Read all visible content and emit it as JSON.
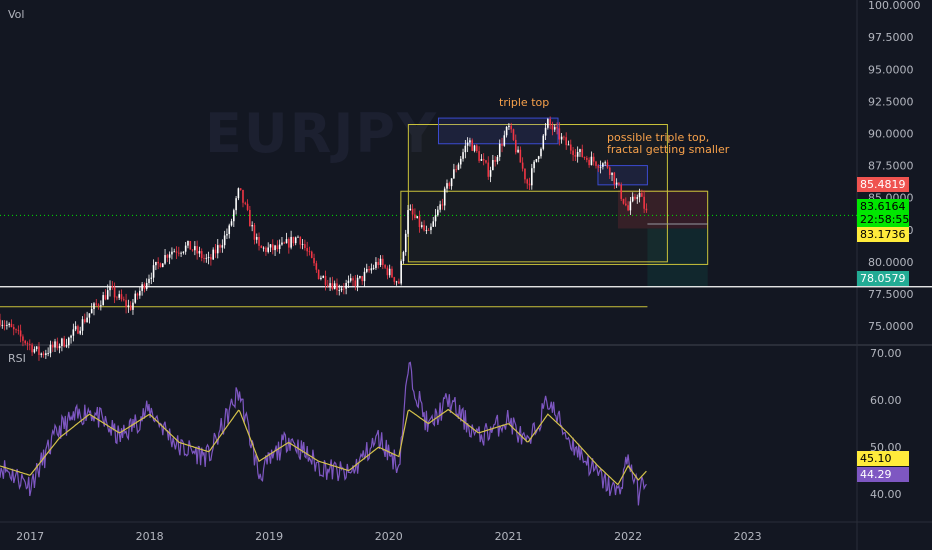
{
  "watermark": "EURJPY",
  "price_pane": {
    "label": "Vol",
    "y_ticks": [
      "100.0000",
      "97.5000",
      "95.0000",
      "92.5000",
      "90.0000",
      "87.5000",
      "85.0000",
      "82.5000",
      "80.0000",
      "77.5000",
      "75.0000"
    ],
    "badges": {
      "high_level": {
        "text": "85.4819",
        "bg": "#ef5350",
        "fg": "#ffffff"
      },
      "last_price": {
        "text": "83.6164",
        "bg": "#00e600",
        "fg": "#000000"
      },
      "countdown": {
        "text": "22:58:55",
        "bg": "#00e600",
        "fg": "#000000"
      },
      "low_level": {
        "text": "83.1736",
        "bg": "#ffeb3b",
        "fg": "#000000"
      },
      "support": {
        "text": "78.0579",
        "bg": "#22ab94",
        "fg": "#ffffff"
      }
    },
    "annotations": {
      "triple_top": "triple top",
      "fractal_note": "possible triple top,\nfractal getting smaller"
    }
  },
  "rsi_pane": {
    "label": "RSI",
    "y_ticks": [
      "70.00",
      "60.00",
      "50.00",
      "40.00"
    ],
    "badges": {
      "rsi_ma": {
        "text": "45.10",
        "bg": "#ffeb3b",
        "fg": "#000000"
      },
      "rsi": {
        "text": "44.29",
        "bg": "#7e57c2",
        "fg": "#ffffff"
      }
    }
  },
  "x_ticks": [
    "2017",
    "2018",
    "2019",
    "2020",
    "2021",
    "2022",
    "2023"
  ],
  "colors": {
    "background": "#131722",
    "candle_up": "#ffffff",
    "candle_down": "#f23645",
    "rsi_line": "#7e57c2",
    "rsi_ma": "#d4c24a",
    "box": "#c9c23a",
    "blue_box": "#3b4bd1",
    "annotation": "#f7a14b"
  },
  "chart_data": [
    {
      "type": "candlestick",
      "title": "",
      "ylim": [
        73.6,
        100.4
      ],
      "x_range": [
        "2016-10",
        "2023-12"
      ],
      "levels": {
        "support_white": 78.0579,
        "support_yellow": 76.5
      },
      "series": [
        {
          "name": "",
          "points": [
            [
              "2016-10",
              75.5
            ],
            [
              "2017-02",
              72.8
            ],
            [
              "2017-05",
              74.0
            ],
            [
              "2017-07",
              76.0
            ],
            [
              "2017-09",
              77.8
            ],
            [
              "2017-11",
              76.4
            ],
            [
              "2018-01",
              79.0
            ],
            [
              "2018-03",
              80.8
            ],
            [
              "2018-05",
              81.2
            ],
            [
              "2018-07",
              80.0
            ],
            [
              "2018-09",
              82.5
            ],
            [
              "2018-10",
              85.6
            ],
            [
              "2018-12",
              81.0
            ],
            [
              "2019-02",
              81.0
            ],
            [
              "2019-04",
              82.0
            ],
            [
              "2019-06",
              79.0
            ],
            [
              "2019-08",
              78.0
            ],
            [
              "2019-10",
              78.5
            ],
            [
              "2019-12",
              80.0
            ],
            [
              "2020-02",
              78.4
            ],
            [
              "2020-03",
              84.0
            ],
            [
              "2020-05",
              82.0
            ],
            [
              "2020-07",
              86.0
            ],
            [
              "2020-09",
              89.5
            ],
            [
              "2020-11",
              87.0
            ],
            [
              "2021-01",
              90.5
            ],
            [
              "2021-03",
              86.0
            ],
            [
              "2021-05",
              90.8
            ],
            [
              "2021-07",
              89.0
            ],
            [
              "2021-09",
              88.0
            ],
            [
              "2021-11",
              87.5
            ],
            [
              "2022-01",
              84.0
            ],
            [
              "2022-02",
              85.5
            ],
            [
              "2022-03",
              83.6
            ]
          ]
        }
      ]
    },
    {
      "type": "line",
      "title": "",
      "ylim": [
        34.5,
        71.5
      ],
      "series": [
        {
          "name": "",
          "points": [
            [
              "2016-10",
              46
            ],
            [
              "2017-01",
              42
            ],
            [
              "2017-04",
              54
            ],
            [
              "2017-07",
              58
            ],
            [
              "2017-10",
              52
            ],
            [
              "2018-01",
              58
            ],
            [
              "2018-04",
              50
            ],
            [
              "2018-07",
              48
            ],
            [
              "2018-10",
              62
            ],
            [
              "2018-12",
              44
            ],
            [
              "2019-03",
              52
            ],
            [
              "2019-06",
              46
            ],
            [
              "2019-09",
              44
            ],
            [
              "2019-12",
              52
            ],
            [
              "2020-02",
              46
            ],
            [
              "2020-03",
              67
            ],
            [
              "2020-05",
              54
            ],
            [
              "2020-07",
              60
            ],
            [
              "2020-10",
              52
            ],
            [
              "2021-01",
              56
            ],
            [
              "2021-03",
              50
            ],
            [
              "2021-05",
              60
            ],
            [
              "2021-07",
              52
            ],
            [
              "2021-10",
              44
            ],
            [
              "2021-12",
              40
            ],
            [
              "2022-01",
              48
            ],
            [
              "2022-02",
              40
            ],
            [
              "2022-03",
              44.29
            ]
          ]
        },
        {
          "name": "",
          "points": [
            [
              "2016-10",
              46
            ],
            [
              "2017-01",
              44
            ],
            [
              "2017-04",
              52
            ],
            [
              "2017-07",
              57
            ],
            [
              "2017-10",
              53
            ],
            [
              "2018-01",
              57
            ],
            [
              "2018-04",
              51
            ],
            [
              "2018-07",
              49
            ],
            [
              "2018-10",
              58
            ],
            [
              "2018-12",
              47
            ],
            [
              "2019-03",
              51
            ],
            [
              "2019-06",
              47
            ],
            [
              "2019-09",
              45
            ],
            [
              "2019-12",
              50
            ],
            [
              "2020-02",
              48
            ],
            [
              "2020-03",
              58
            ],
            [
              "2020-05",
              55
            ],
            [
              "2020-07",
              58
            ],
            [
              "2020-10",
              53
            ],
            [
              "2021-01",
              55
            ],
            [
              "2021-03",
              51
            ],
            [
              "2021-05",
              57
            ],
            [
              "2021-07",
              53
            ],
            [
              "2021-10",
              46
            ],
            [
              "2021-12",
              42
            ],
            [
              "2022-01",
              46
            ],
            [
              "2022-02",
              43
            ],
            [
              "2022-03",
              45.1
            ]
          ]
        }
      ]
    }
  ]
}
